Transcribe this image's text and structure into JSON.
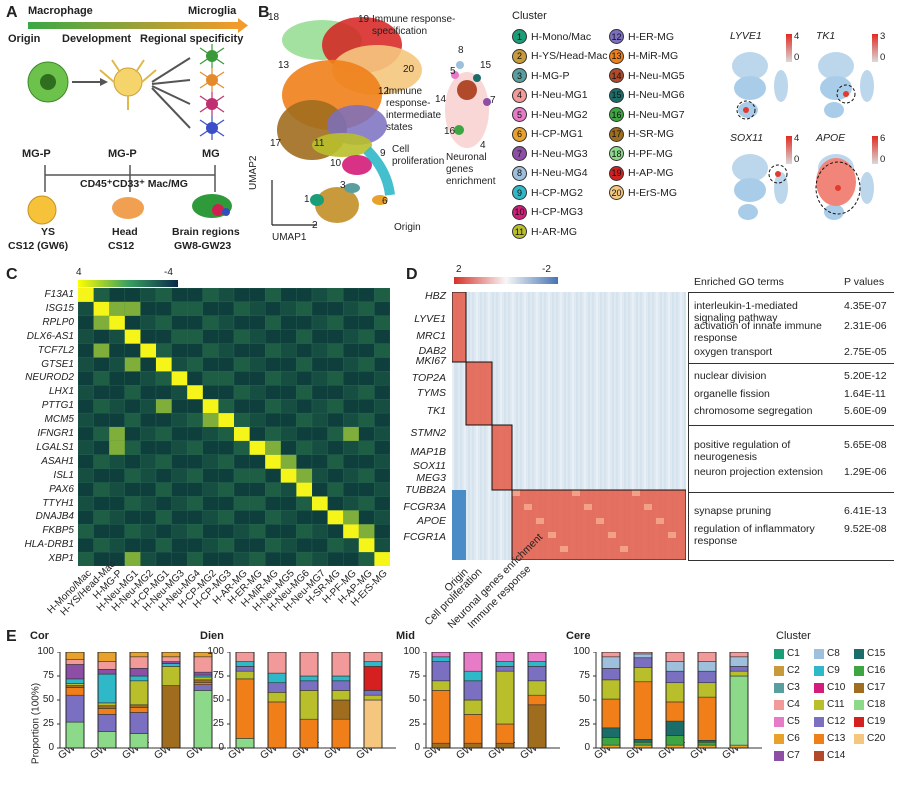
{
  "panels": {
    "A": "A",
    "B": "B",
    "C": "C",
    "D": "D",
    "E": "E"
  },
  "panelA": {
    "arrow_left": "Macrophage",
    "arrow_right": "Microglia",
    "stages": [
      "Origin",
      "Development",
      "Regional specificity"
    ],
    "mg_labels": [
      "MG-P",
      "MG-P",
      "MG"
    ],
    "cd_label": "CD45⁺CD33⁺ Mac/MG",
    "sources": [
      {
        "name": "YS",
        "sub": "CS12 (GW6)"
      },
      {
        "name": "Head",
        "sub": "CS12"
      },
      {
        "name": "Brain regions",
        "sub": "GW8-GW23"
      }
    ]
  },
  "panelB": {
    "xlabel": "UMAP1",
    "ylabel": "UMAP2",
    "annotations": [
      "Immune response-specification",
      "Immune response-intermediate states",
      "Cell proliferation",
      "Neuronal genes enrichment",
      "Origin"
    ],
    "cluster_numbers": [
      "18",
      "19",
      "13",
      "20",
      "12",
      "17",
      "11",
      "10",
      "9",
      "14",
      "8",
      "5",
      "15",
      "7",
      "16",
      "4",
      "3",
      "1",
      "2",
      "6"
    ],
    "legend_title": "Cluster",
    "clusters": [
      {
        "n": "1",
        "label": "H-Mono/Mac",
        "color": "#1a9e77"
      },
      {
        "n": "2",
        "label": "H-YS/Head-Mac",
        "color": "#c89a3c"
      },
      {
        "n": "3",
        "label": "H-MG-P",
        "color": "#5a9fa0"
      },
      {
        "n": "4",
        "label": "H-Neu-MG1",
        "color": "#f29a9a"
      },
      {
        "n": "5",
        "label": "H-Neu-MG2",
        "color": "#e77bc8"
      },
      {
        "n": "6",
        "label": "H-CP-MG1",
        "color": "#e8a22c"
      },
      {
        "n": "7",
        "label": "H-Neu-MG3",
        "color": "#8d4fa6"
      },
      {
        "n": "8",
        "label": "H-Neu-MG4",
        "color": "#9ec0dd"
      },
      {
        "n": "9",
        "label": "H-CP-MG2",
        "color": "#2fb8c8"
      },
      {
        "n": "10",
        "label": "H-CP-MG3",
        "color": "#d41c7a"
      },
      {
        "n": "11",
        "label": "H-AR-MG",
        "color": "#b9bf2b"
      },
      {
        "n": "12",
        "label": "H-ER-MG",
        "color": "#7a6fc0"
      },
      {
        "n": "13",
        "label": "H-MiR-MG",
        "color": "#f07f1a"
      },
      {
        "n": "14",
        "label": "H-Neu-MG5",
        "color": "#b04a2a"
      },
      {
        "n": "15",
        "label": "H-Neu-MG6",
        "color": "#1b6d6a"
      },
      {
        "n": "16",
        "label": "H-Neu-MG7",
        "color": "#3da542"
      },
      {
        "n": "17",
        "label": "H-SR-MG",
        "color": "#a06d1e"
      },
      {
        "n": "18",
        "label": "H-PF-MG",
        "color": "#8cd98a"
      },
      {
        "n": "19",
        "label": "H-AP-MG",
        "color": "#d6201f"
      },
      {
        "n": "20",
        "label": "H-ErS-MG",
        "color": "#f5c77e"
      }
    ],
    "feature_genes": [
      {
        "gene": "LYVE1",
        "max": "4",
        "min": "0"
      },
      {
        "gene": "TK1",
        "max": "3",
        "min": "0"
      },
      {
        "gene": "SOX11",
        "max": "4",
        "min": "0"
      },
      {
        "gene": "APOE",
        "max": "6",
        "min": "0"
      }
    ]
  },
  "panelC": {
    "scale_max": "4",
    "scale_min": "-4",
    "genes": [
      "F13A1",
      "ISG15",
      "RPLP0",
      "DLX6-AS1",
      "TCF7L2",
      "GTSE1",
      "NEUROD2",
      "LHX1",
      "PTTG1",
      "MCM5",
      "IFNGR1",
      "LGALS1",
      "ASAH1",
      "ISL1",
      "PAX6",
      "TTYH1",
      "DNAJB4",
      "FKBP5",
      "HLA-DRB1",
      "XBP1"
    ],
    "clusters": [
      "H-Mono/Mac",
      "H-YS/Head-Mac",
      "H-MG-P",
      "H-Neu-MG1",
      "H-Neu-MG2",
      "H-CP-MG1",
      "H-Neu-MG3",
      "H-Neu-MG4",
      "H-CP-MG2",
      "H-CP-MG3",
      "H-AR-MG",
      "H-ER-MG",
      "H-MiR-MG",
      "H-Neu-MG5",
      "H-Neu-MG6",
      "H-Neu-MG7",
      "H-SR-MG",
      "H-PF-MG",
      "H-AP-MG",
      "H-ErS-MG"
    ]
  },
  "panelD": {
    "scale_max": "2",
    "scale_min": "-2",
    "genes": [
      "HBZ",
      "LYVE1",
      "MRC1",
      "DAB2",
      "MKI67",
      "TOP2A",
      "TYMS",
      "TK1",
      "STMN2",
      "MAP1B",
      "SOX11",
      "MEG3",
      "TUBB2A",
      "FCGR3A",
      "APOE",
      "FCGR1A"
    ],
    "col_title_go": "Enriched GO terms",
    "col_title_p": "P values",
    "go_terms": [
      {
        "term": "interleukin-1-mediated signaling pathway",
        "p": "4.35E-07"
      },
      {
        "term": "activation of innate immune response",
        "p": "2.31E-06"
      },
      {
        "term": "oxygen transport",
        "p": "2.75E-05"
      },
      {
        "term": "nuclear division",
        "p": "5.20E-12"
      },
      {
        "term": "organelle fission",
        "p": "1.64E-11"
      },
      {
        "term": "chromosome segregation",
        "p": "5.60E-09"
      },
      {
        "term": "positive regulation of neurogenesis",
        "p": "5.65E-08"
      },
      {
        "term": "neuron projection extension",
        "p": "1.29E-06"
      },
      {
        "term": "synapse pruning",
        "p": "6.41E-13"
      },
      {
        "term": "regulation of inflammatory response",
        "p": "9.52E-08"
      }
    ],
    "groups": [
      "Origin",
      "Cell proliferation",
      "Neuronal genes enrichment",
      "Immune response"
    ]
  },
  "panelE": {
    "ylabel": "Proportion (100%)",
    "yticks": [
      "0",
      "25",
      "50",
      "75",
      "100"
    ],
    "legend_title": "Cluster",
    "regions": [
      {
        "name": "Cor",
        "weeks": [
          "GW8",
          "GW10",
          "GW12",
          "GW16",
          "GW23"
        ]
      },
      {
        "name": "Dien",
        "weeks": [
          "GW8",
          "GW10",
          "GW12",
          "GW16",
          "GW23"
        ]
      },
      {
        "name": "Mid",
        "weeks": [
          "GW8",
          "GW10",
          "GW12",
          "GW16"
        ]
      },
      {
        "name": "Cere",
        "weeks": [
          "GW8",
          "GW10",
          "GW12",
          "GW16",
          "GW23"
        ]
      }
    ],
    "legend": [
      "C1",
      "C8",
      "C15",
      "C2",
      "C9",
      "C16",
      "C3",
      "C10",
      "C17",
      "C4",
      "C11",
      "C18",
      "C5",
      "C12",
      "C19",
      "C6",
      "C13",
      "C20",
      "C7",
      "C14"
    ]
  },
  "chart_data": [
    {
      "type": "bar",
      "title": "Cor",
      "categories": [
        "GW8",
        "GW10",
        "GW12",
        "GW16",
        "GW23"
      ],
      "stacked": true,
      "ylim": [
        0,
        100
      ],
      "series": [
        {
          "name": "C18",
          "values": [
            27,
            17,
            15,
            0,
            60
          ]
        },
        {
          "name": "C12",
          "values": [
            28,
            18,
            22,
            0,
            6
          ]
        },
        {
          "name": "C13",
          "values": [
            8,
            6,
            5,
            0,
            2
          ]
        },
        {
          "name": "C17",
          "values": [
            2,
            3,
            3,
            65,
            3
          ]
        },
        {
          "name": "C11",
          "values": [
            2,
            3,
            25,
            20,
            3
          ]
        },
        {
          "name": "C9",
          "values": [
            5,
            30,
            5,
            3,
            2
          ]
        },
        {
          "name": "C7",
          "values": [
            15,
            5,
            8,
            2,
            3
          ]
        },
        {
          "name": "C4",
          "values": [
            5,
            8,
            12,
            5,
            16
          ]
        },
        {
          "name": "C6",
          "values": [
            8,
            10,
            5,
            5,
            5
          ]
        }
      ]
    },
    {
      "type": "bar",
      "title": "Dien",
      "categories": [
        "GW8",
        "GW10",
        "GW12",
        "GW16",
        "GW23"
      ],
      "stacked": true,
      "ylim": [
        0,
        100
      ],
      "series": [
        {
          "name": "C18",
          "values": [
            10,
            0,
            0,
            0,
            0
          ]
        },
        {
          "name": "C20",
          "values": [
            0,
            0,
            0,
            0,
            50
          ]
        },
        {
          "name": "C13",
          "values": [
            62,
            48,
            30,
            30,
            0
          ]
        },
        {
          "name": "C17",
          "values": [
            0,
            0,
            0,
            20,
            0
          ]
        },
        {
          "name": "C11",
          "values": [
            8,
            10,
            30,
            10,
            5
          ]
        },
        {
          "name": "C12",
          "values": [
            5,
            10,
            10,
            10,
            5
          ]
        },
        {
          "name": "C19",
          "values": [
            0,
            0,
            0,
            0,
            25
          ]
        },
        {
          "name": "C9",
          "values": [
            5,
            10,
            5,
            5,
            5
          ]
        },
        {
          "name": "C4",
          "values": [
            10,
            22,
            25,
            25,
            10
          ]
        }
      ]
    },
    {
      "type": "bar",
      "title": "Mid",
      "categories": [
        "GW8",
        "GW10",
        "GW12",
        "GW16"
      ],
      "stacked": true,
      "ylim": [
        0,
        100
      ],
      "series": [
        {
          "name": "C17",
          "values": [
            5,
            5,
            5,
            45
          ]
        },
        {
          "name": "C13",
          "values": [
            55,
            30,
            20,
            10
          ]
        },
        {
          "name": "C11",
          "values": [
            10,
            15,
            55,
            15
          ]
        },
        {
          "name": "C12",
          "values": [
            20,
            20,
            5,
            15
          ]
        },
        {
          "name": "C9",
          "values": [
            5,
            10,
            5,
            5
          ]
        },
        {
          "name": "C5",
          "values": [
            5,
            20,
            10,
            10
          ]
        }
      ]
    },
    {
      "type": "bar",
      "title": "Cere",
      "categories": [
        "GW8",
        "GW10",
        "GW12",
        "GW16",
        "GW23"
      ],
      "stacked": true,
      "ylim": [
        0,
        100
      ],
      "series": [
        {
          "name": "C6",
          "values": [
            3,
            3,
            3,
            3,
            3
          ]
        },
        {
          "name": "C16",
          "values": [
            8,
            3,
            10,
            3,
            0
          ]
        },
        {
          "name": "C15",
          "values": [
            10,
            3,
            15,
            2,
            0
          ]
        },
        {
          "name": "C13",
          "values": [
            30,
            60,
            20,
            45,
            0
          ]
        },
        {
          "name": "C18",
          "values": [
            0,
            0,
            0,
            0,
            72
          ]
        },
        {
          "name": "C11",
          "values": [
            20,
            15,
            20,
            15,
            5
          ]
        },
        {
          "name": "C12",
          "values": [
            12,
            10,
            12,
            12,
            5
          ]
        },
        {
          "name": "C8",
          "values": [
            12,
            4,
            10,
            10,
            10
          ]
        },
        {
          "name": "C4",
          "values": [
            5,
            2,
            10,
            10,
            5
          ]
        }
      ]
    }
  ]
}
